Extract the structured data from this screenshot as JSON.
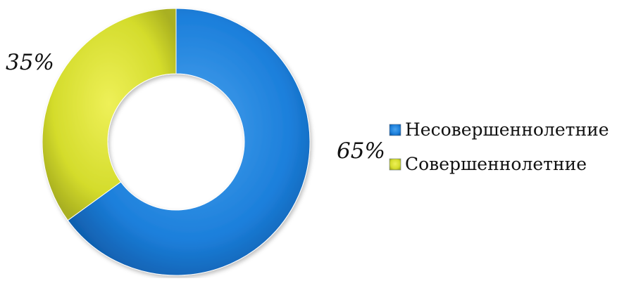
{
  "chart_data": {
    "type": "pie",
    "subtype": "doughnut",
    "title": "",
    "categories": [
      "Несовершеннолетние",
      "Совершеннолетние"
    ],
    "values": [
      65,
      35
    ],
    "data_labels": [
      "65%",
      "35%"
    ],
    "colors": [
      "#1c7fdb",
      "#d4dc2c"
    ],
    "legend": {
      "position": "right",
      "items": [
        "Несовершеннолетние",
        "Совершеннолетние"
      ]
    }
  }
}
